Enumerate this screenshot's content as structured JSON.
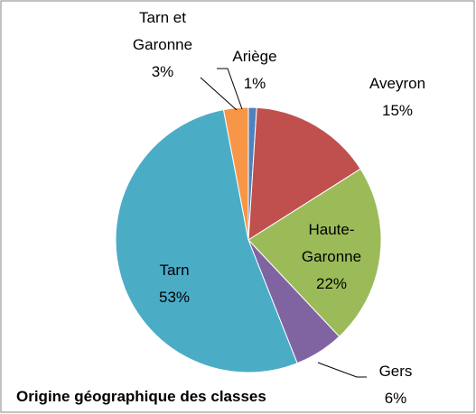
{
  "chart_data": {
    "type": "pie",
    "title": "Origine géographique des classes",
    "categories": [
      "Ariège",
      "Aveyron",
      "Haute-Garonne",
      "Gers",
      "Tarn",
      "Tarn et Garonne"
    ],
    "values": [
      1,
      15,
      22,
      6,
      53,
      3
    ],
    "value_labels": [
      "1%",
      "15%",
      "22%",
      "6%",
      "53%",
      "3%"
    ],
    "colors": [
      "#4f81bd",
      "#c0504d",
      "#9bbb59",
      "#8064a2",
      "#4bacc6",
      "#f79646"
    ]
  }
}
